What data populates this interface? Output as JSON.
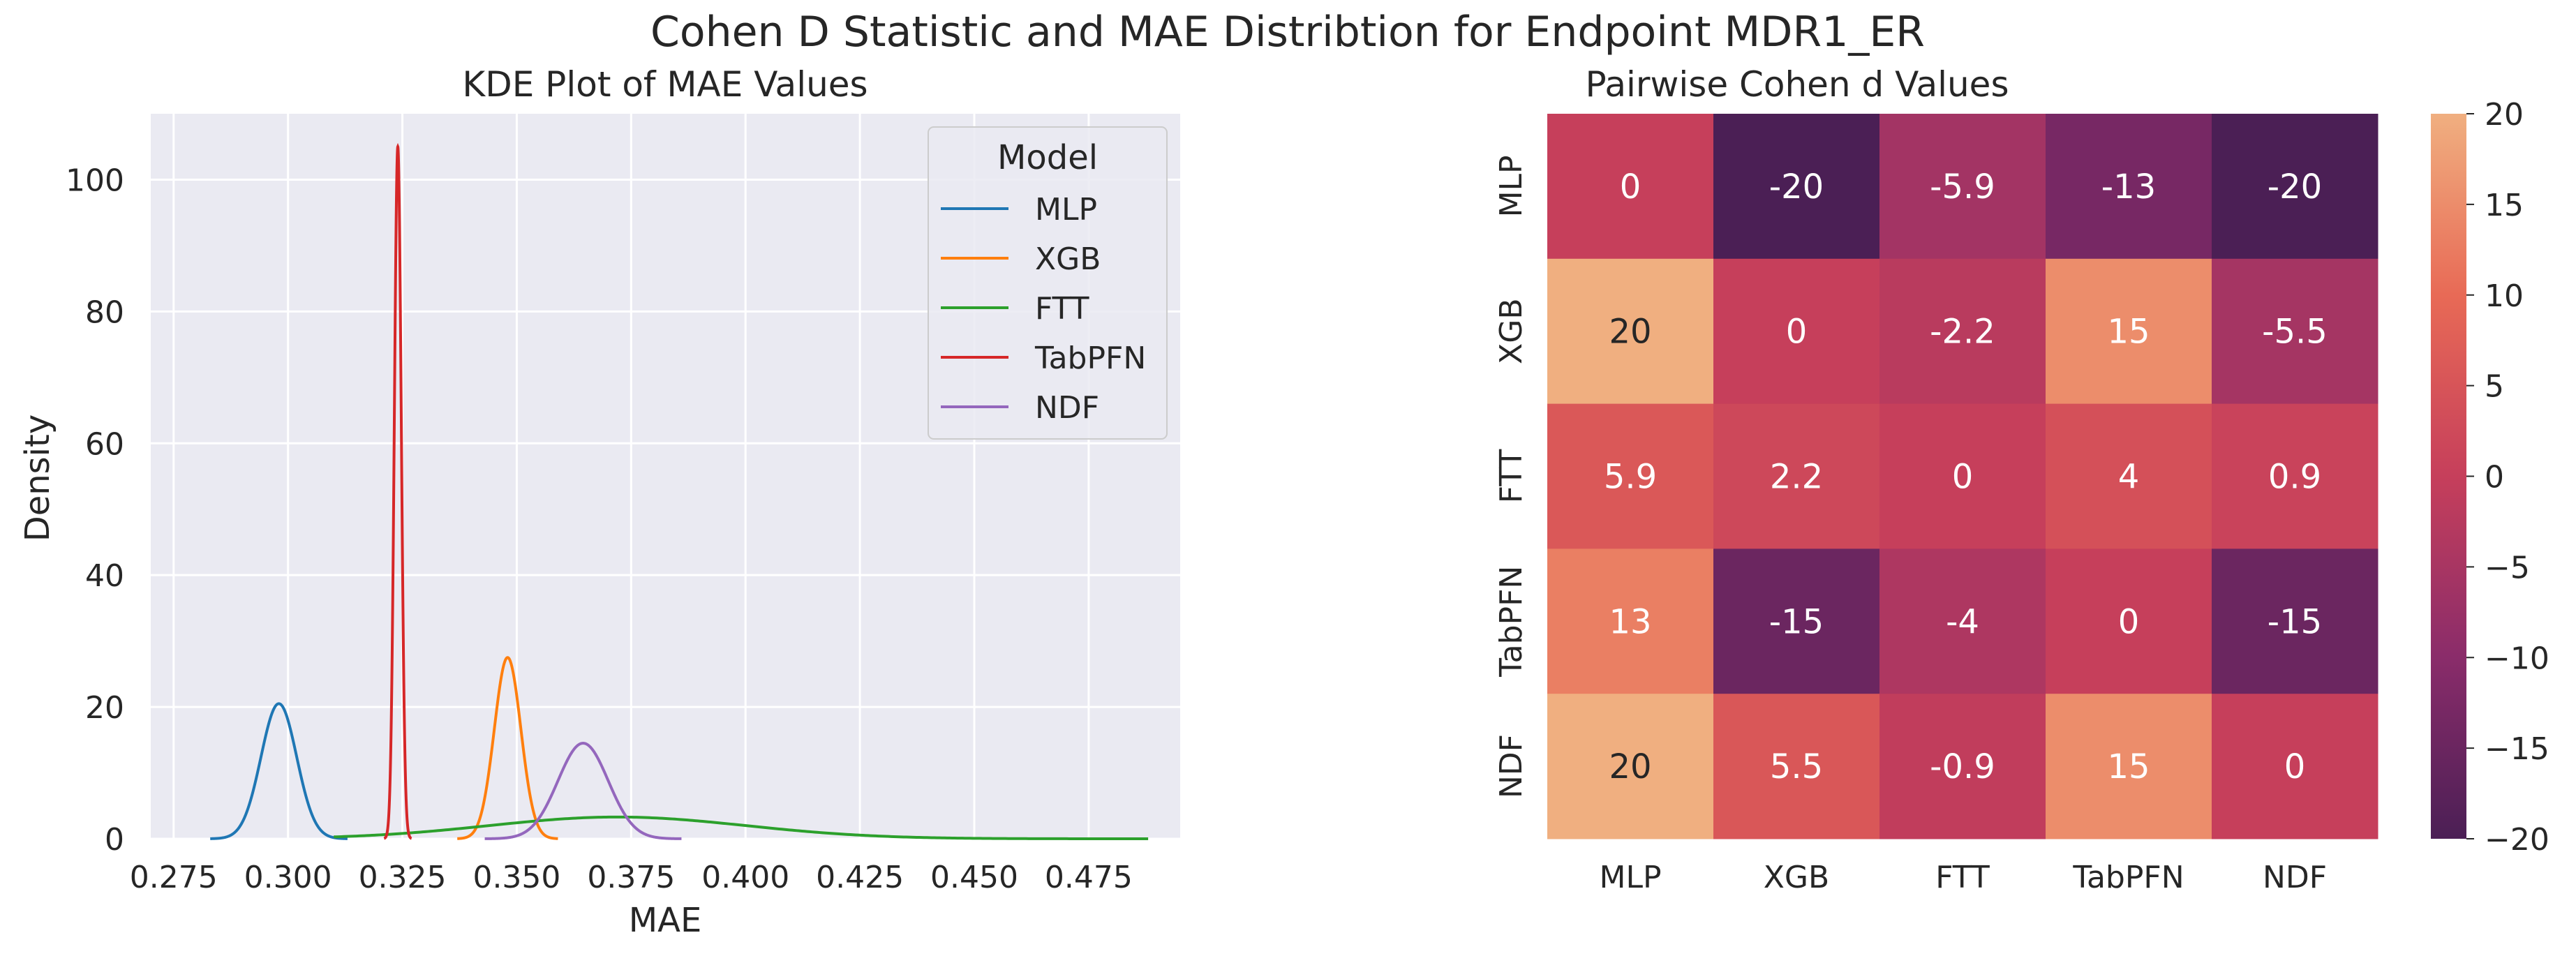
{
  "suptitle": "Cohen D Statistic and MAE Distribtion for Endpoint MDR1_ER",
  "chart_data": [
    {
      "type": "line",
      "subtype": "kde",
      "title": "KDE Plot of MAE Values",
      "xlabel": "MAE",
      "ylabel": "Density",
      "xlim": [
        0.27,
        0.495
      ],
      "ylim": [
        0,
        110
      ],
      "xticks": [
        0.275,
        0.3,
        0.325,
        0.35,
        0.375,
        0.4,
        0.425,
        0.45,
        0.475
      ],
      "xtick_labels": [
        "0.275",
        "0.300",
        "0.325",
        "0.350",
        "0.375",
        "0.400",
        "0.425",
        "0.450",
        "0.475"
      ],
      "yticks": [
        0,
        20,
        40,
        60,
        80,
        100
      ],
      "grid": true,
      "background": "#eaeaf2",
      "legend": {
        "title": "Model",
        "placement": "top-right"
      },
      "series": [
        {
          "name": "MLP",
          "color": "#1f77b4",
          "peak_x": 0.298,
          "peak_density": 20.5,
          "sd": 0.0039,
          "x_range": [
            0.283,
            0.313
          ]
        },
        {
          "name": "XGB",
          "color": "#ff7f0e",
          "peak_x": 0.348,
          "peak_density": 27.5,
          "sd": 0.0029,
          "x_range": [
            0.337,
            0.359
          ]
        },
        {
          "name": "FTT",
          "color": "#2ca02c",
          "peak_x": 0.372,
          "peak_density": 3.3,
          "sd": 0.028,
          "x_range": [
            0.31,
            0.488
          ]
        },
        {
          "name": "TabPFN",
          "color": "#d62728",
          "peak_x": 0.324,
          "peak_density": 105,
          "sd": 0.00076,
          "x_range": [
            0.321,
            0.327
          ]
        },
        {
          "name": "NDF",
          "color": "#9467bd",
          "peak_x": 0.3645,
          "peak_density": 14.5,
          "sd": 0.0055,
          "x_range": [
            0.343,
            0.386
          ]
        }
      ]
    },
    {
      "type": "heatmap",
      "title": "Pairwise Cohen d Values",
      "rows": [
        "MLP",
        "XGB",
        "FTT",
        "TabPFN",
        "NDF"
      ],
      "columns": [
        "MLP",
        "XGB",
        "FTT",
        "TabPFN",
        "NDF"
      ],
      "values": [
        [
          0,
          -20,
          -5.9,
          -13,
          -20
        ],
        [
          20,
          0,
          -2.2,
          15,
          -5.5
        ],
        [
          5.9,
          2.2,
          0,
          4,
          0.9
        ],
        [
          13,
          -15,
          -4,
          0,
          -15
        ],
        [
          20,
          5.5,
          -0.9,
          15,
          0
        ]
      ],
      "annotations": [
        [
          "0",
          "-20",
          "-5.9",
          "-13",
          "-20"
        ],
        [
          "20",
          "0",
          "-2.2",
          "15",
          "-5.5"
        ],
        [
          "5.9",
          "2.2",
          "0",
          "4",
          "0.9"
        ],
        [
          "13",
          "-15",
          "-4",
          "0",
          "-15"
        ],
        [
          "20",
          "5.5",
          "-0.9",
          "15",
          "0"
        ]
      ],
      "colormap": "rocket-like",
      "vmin": -20,
      "vmax": 20,
      "colorbar_ticks": [
        20,
        15,
        10,
        5,
        0,
        -5,
        -10,
        -15,
        -20
      ],
      "colorbar_tick_labels": [
        "20",
        "15",
        "10",
        "5",
        "0",
        "−5",
        "−10",
        "−15",
        "−20"
      ]
    }
  ]
}
